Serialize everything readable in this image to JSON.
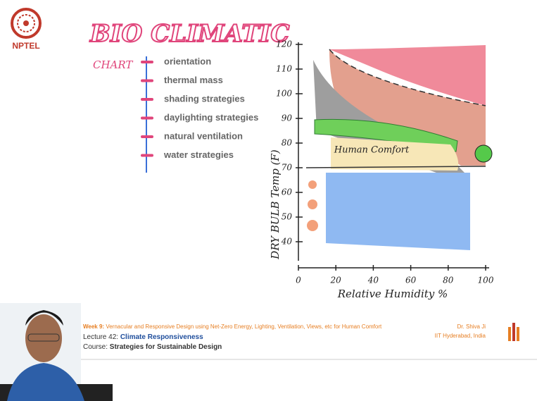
{
  "logo": {
    "text": "NPTEL"
  },
  "slide": {
    "title": "BIO CLIMATIC",
    "subtitle": "CHART",
    "items": [
      "orientation",
      "thermal mass",
      "shading strategies",
      "daylighting strategies",
      "natural ventilation",
      "water strategies"
    ]
  },
  "sketch": {
    "y_label": "DRY BULB Temp (F)",
    "x_label": "Relative Humidity %",
    "y_ticks": [
      120,
      110,
      100,
      90,
      80,
      70,
      60,
      50,
      40
    ],
    "x_ticks": [
      0,
      20,
      40,
      60,
      80,
      100
    ],
    "zone_label": "Human Comfort"
  },
  "footer": {
    "week_label": "Week 9:",
    "week_text": "Vernacular and Responsive Design using Net-Zero Energy, Lighting, Ventilation, Views, etc for Human Comfort",
    "lecture_label": "Lecture 42:",
    "lecture_title": "Climate Responsiveness",
    "course_label": "Course:",
    "course_title": "Strategies for Sustainable Design",
    "instructor": "Dr. Shiva Ji",
    "institute": "IIT Hyderabad, India"
  }
}
